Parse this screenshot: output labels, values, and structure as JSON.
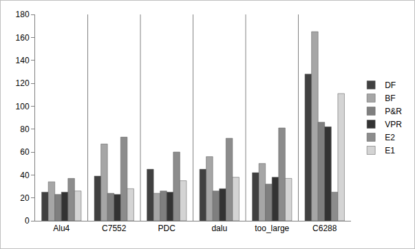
{
  "chart_data": {
    "type": "bar",
    "categories": [
      "Alu4",
      "C7552",
      "PDC",
      "dalu",
      "too_large",
      "C6288"
    ],
    "series": [
      {
        "name": "DF",
        "color": "#404040",
        "values": [
          25,
          39,
          45,
          45,
          42,
          128
        ]
      },
      {
        "name": "BF",
        "color": "#a6a6a6",
        "values": [
          34,
          67,
          24,
          56,
          50,
          165
        ]
      },
      {
        "name": "P&R",
        "color": "#7f7f7f",
        "values": [
          23,
          24,
          26,
          26,
          32,
          86
        ]
      },
      {
        "name": "VPR",
        "color": "#333333",
        "values": [
          25,
          23,
          25,
          28,
          38,
          82
        ]
      },
      {
        "name": "E2",
        "color": "#8c8c8c",
        "values": [
          37,
          73,
          60,
          72,
          81,
          25
        ]
      },
      {
        "name": "E1",
        "color": "#d4d4d4",
        "values": [
          26,
          28,
          35,
          38,
          37,
          111
        ]
      }
    ],
    "ylim": [
      0,
      180
    ],
    "yticks": [
      0,
      20,
      40,
      60,
      80,
      100,
      120,
      140,
      160,
      180
    ],
    "grid": false,
    "legend": "right"
  }
}
